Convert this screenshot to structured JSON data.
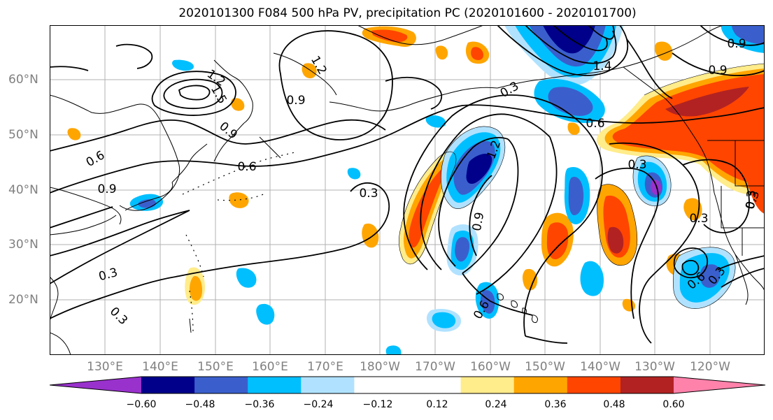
{
  "title": "2020101300 F084 500 hPa PV, precipitation PC (2020101600 - 2020101700)",
  "latitude_labels": [
    "60°N",
    "50°N",
    "40°N",
    "30°N",
    "20°N"
  ],
  "longitude_labels": [
    "130°E",
    "140°E",
    "150°E",
    "160°E",
    "170°E",
    "180°W",
    "170°W",
    "160°W",
    "150°W",
    "140°W",
    "130°W",
    "120°W"
  ],
  "contour_labels": [
    "1.2",
    "1.5",
    "0.9",
    "0.9",
    "0.6",
    "0.6",
    "0.9",
    "0.3",
    "0.6",
    "0.3",
    "0.3",
    "0.3",
    "1.2",
    "0.9",
    "0.3",
    "0.6",
    "0.3",
    "0.9",
    "0.6",
    "0.3",
    "0.3",
    "1.2",
    "0.9",
    "0.3",
    "1.4"
  ],
  "colorbar": {
    "colors": [
      "#9932cc",
      "#00008b",
      "#3a5fcd",
      "#00bfff",
      "#b0e2ff",
      "#ffffff",
      "#ffffff",
      "#ffec8b",
      "#ffa500",
      "#ff4500",
      "#b22222",
      "#ff82ab"
    ],
    "tick_labels": [
      "−0.60",
      "−0.48",
      "−0.36",
      "−0.24",
      "−0.12",
      "0.12",
      "0.24",
      "0.36",
      "0.48",
      "0.60"
    ]
  },
  "colors": {
    "pv_contour": "#000000",
    "coastline": "#000000",
    "gridline": "#b0b0b0",
    "axis_label": "#808080"
  }
}
